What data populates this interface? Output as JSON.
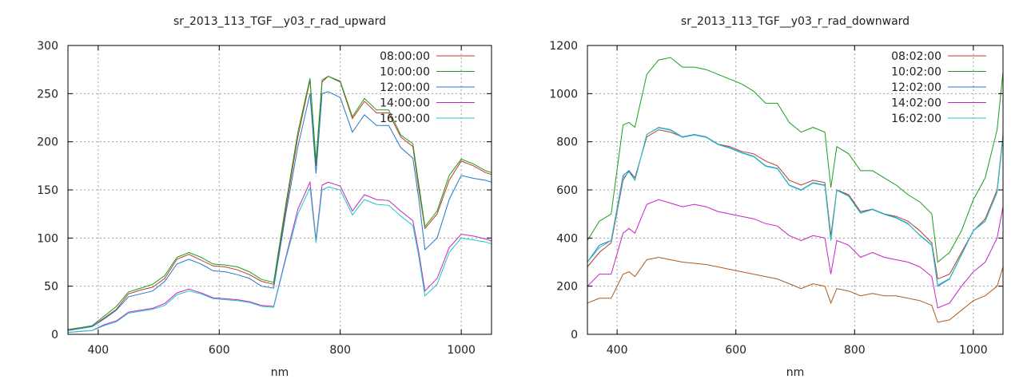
{
  "chart_data": [
    {
      "type": "line",
      "title": "sr_2013_113_TGF__y03_r_rad_upward",
      "xlabel": "nm",
      "ylabel": "",
      "xlim": [
        350,
        1050
      ],
      "ylim": [
        0,
        300
      ],
      "xticks": [
        400,
        600,
        800,
        1000
      ],
      "yticks": [
        0,
        50,
        100,
        150,
        200,
        250,
        300
      ],
      "grid": true,
      "legend_position": "top-right",
      "x": [
        350,
        370,
        390,
        410,
        430,
        450,
        470,
        490,
        510,
        530,
        550,
        570,
        590,
        610,
        630,
        650,
        670,
        690,
        710,
        730,
        750,
        760,
        770,
        780,
        800,
        820,
        840,
        860,
        880,
        900,
        920,
        930,
        940,
        960,
        980,
        1000,
        1020,
        1040,
        1050
      ],
      "series": [
        {
          "name": "08:00:00",
          "color": "#c0392b",
          "values": [
            5,
            6,
            8,
            17,
            26,
            42,
            46,
            49,
            58,
            78,
            83,
            77,
            71,
            70,
            67,
            62,
            55,
            52,
            130,
            205,
            264,
            175,
            262,
            268,
            262,
            224,
            242,
            230,
            230,
            205,
            195,
            150,
            110,
            125,
            160,
            180,
            175,
            168,
            166
          ]
        },
        {
          "name": "10:00:00",
          "color": "#1a9e1a",
          "values": [
            5,
            7,
            9,
            19,
            29,
            44,
            48,
            52,
            61,
            80,
            85,
            80,
            73,
            72,
            70,
            65,
            57,
            54,
            135,
            210,
            266,
            180,
            264,
            268,
            263,
            226,
            245,
            233,
            233,
            207,
            198,
            155,
            112,
            128,
            165,
            182,
            177,
            170,
            168
          ]
        },
        {
          "name": "12:00:00",
          "color": "#1f78c8",
          "values": [
            4,
            6,
            8,
            16,
            25,
            39,
            42,
            45,
            55,
            73,
            78,
            73,
            66,
            65,
            62,
            58,
            50,
            48,
            125,
            195,
            250,
            167,
            250,
            252,
            246,
            210,
            228,
            217,
            217,
            194,
            183,
            140,
            88,
            100,
            140,
            165,
            162,
            160,
            158
          ]
        },
        {
          "name": "14:00:00",
          "color": "#c425c4",
          "values": [
            2,
            3,
            4,
            10,
            14,
            23,
            25,
            27,
            32,
            43,
            47,
            43,
            38,
            37,
            36,
            34,
            30,
            29,
            80,
            130,
            158,
            98,
            155,
            158,
            154,
            128,
            145,
            140,
            139,
            128,
            118,
            85,
            45,
            58,
            90,
            104,
            102,
            99,
            97
          ]
        },
        {
          "name": "16:00:00",
          "color": "#1ec8c8",
          "values": [
            2,
            3,
            4,
            9,
            13,
            22,
            24,
            26,
            30,
            41,
            45,
            42,
            37,
            36,
            35,
            33,
            29,
            28,
            78,
            125,
            152,
            95,
            150,
            153,
            150,
            124,
            140,
            135,
            134,
            123,
            113,
            80,
            40,
            52,
            85,
            100,
            98,
            96,
            94
          ]
        }
      ]
    },
    {
      "type": "line",
      "title": "sr_2013_113_TGF__y03_r_rad_downward",
      "xlabel": "nm",
      "ylabel": "",
      "xlim": [
        350,
        1050
      ],
      "ylim": [
        0,
        1200
      ],
      "xticks": [
        400,
        600,
        800,
        1000
      ],
      "yticks": [
        0,
        200,
        400,
        600,
        800,
        1000,
        1200
      ],
      "grid": true,
      "legend_position": "top-right",
      "x": [
        350,
        370,
        390,
        410,
        420,
        430,
        450,
        470,
        490,
        510,
        530,
        550,
        570,
        590,
        610,
        630,
        650,
        670,
        690,
        710,
        730,
        750,
        760,
        770,
        790,
        810,
        830,
        850,
        870,
        890,
        910,
        930,
        940,
        960,
        980,
        1000,
        1020,
        1040,
        1050
      ],
      "series": [
        {
          "name": "08:02:00",
          "color": "#c0392b",
          "values": [
            280,
            340,
            380,
            640,
            680,
            650,
            820,
            850,
            840,
            820,
            830,
            820,
            790,
            780,
            760,
            750,
            720,
            700,
            640,
            620,
            640,
            630,
            410,
            600,
            580,
            510,
            520,
            500,
            490,
            470,
            430,
            380,
            230,
            250,
            340,
            430,
            480,
            600,
            830
          ]
        },
        {
          "name": "10:02:00",
          "color": "#1a9e1a",
          "values": [
            390,
            470,
            500,
            870,
            880,
            860,
            1080,
            1140,
            1150,
            1110,
            1110,
            1100,
            1080,
            1060,
            1040,
            1010,
            960,
            960,
            880,
            840,
            860,
            840,
            610,
            780,
            750,
            680,
            680,
            650,
            620,
            580,
            550,
            500,
            300,
            340,
            430,
            560,
            650,
            850,
            1090
          ]
        },
        {
          "name": "12:02:00",
          "color": "#1f78c8",
          "values": [
            300,
            370,
            390,
            660,
            680,
            640,
            830,
            860,
            850,
            820,
            830,
            820,
            790,
            775,
            755,
            740,
            700,
            690,
            620,
            600,
            630,
            620,
            390,
            600,
            575,
            505,
            520,
            500,
            485,
            460,
            410,
            370,
            200,
            230,
            330,
            430,
            470,
            590,
            820
          ]
        },
        {
          "name": "14:02:00",
          "color": "#c425c4",
          "values": [
            200,
            250,
            250,
            420,
            440,
            420,
            540,
            560,
            545,
            530,
            540,
            530,
            510,
            500,
            490,
            480,
            460,
            450,
            410,
            390,
            410,
            400,
            250,
            390,
            370,
            320,
            340,
            320,
            310,
            300,
            280,
            240,
            110,
            130,
            200,
            260,
            300,
            400,
            530
          ]
        },
        {
          "name": "16:02:00",
          "color": "#1ec8c8",
          "values": [
            300,
            360,
            390,
            650,
            675,
            640,
            830,
            858,
            848,
            818,
            828,
            818,
            788,
            773,
            753,
            738,
            698,
            688,
            618,
            598,
            628,
            618,
            392,
            598,
            573,
            503,
            518,
            498,
            483,
            458,
            412,
            372,
            205,
            232,
            332,
            432,
            472,
            592,
            825
          ]
        },
        {
          "name": "",
          "color": "#b05a1a",
          "values": [
            130,
            150,
            150,
            250,
            260,
            240,
            310,
            320,
            310,
            300,
            295,
            290,
            280,
            270,
            260,
            250,
            240,
            230,
            210,
            190,
            210,
            200,
            130,
            190,
            180,
            160,
            170,
            160,
            160,
            150,
            140,
            120,
            50,
            60,
            100,
            140,
            160,
            200,
            280
          ]
        }
      ]
    }
  ]
}
